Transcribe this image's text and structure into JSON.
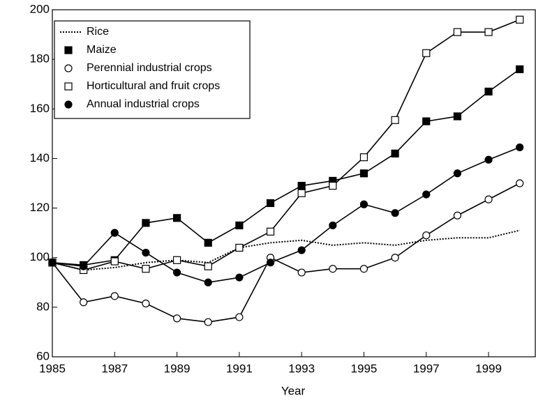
{
  "chart_data": {
    "type": "line",
    "x_label": "Year",
    "x": [
      1985,
      1986,
      1987,
      1988,
      1989,
      1990,
      1991,
      1992,
      1993,
      1994,
      1995,
      1996,
      1997,
      1998,
      1999,
      2000
    ],
    "xlim": [
      1985,
      2000.5
    ],
    "xticks": [
      1985,
      1987,
      1989,
      1991,
      1993,
      1995,
      1997,
      1999
    ],
    "ylim": [
      60,
      200
    ],
    "yticks": [
      60,
      80,
      100,
      120,
      140,
      160,
      180,
      200
    ],
    "legend": "upper left",
    "series": [
      {
        "name": "Rice",
        "color": "#000000",
        "marker": "none",
        "linestyle": "dotted",
        "values": [
          98,
          95,
          96,
          98,
          99,
          98,
          104,
          106,
          107,
          105,
          106,
          105,
          107,
          108,
          108,
          111
        ]
      },
      {
        "name": "Maize",
        "color": "#000000",
        "marker": "square-filled",
        "linestyle": "solid",
        "values": [
          98,
          97,
          99,
          114,
          116,
          106,
          113,
          122,
          129,
          131,
          134,
          142,
          155,
          157,
          167,
          176
        ]
      },
      {
        "name": "Perennial industrial crops",
        "color": "#000000",
        "marker": "circle-open",
        "linestyle": "solid",
        "values": [
          98,
          82,
          84.5,
          81.5,
          75.5,
          74,
          76,
          100,
          94,
          95.5,
          95.5,
          100,
          109,
          117,
          123.5,
          130
        ]
      },
      {
        "name": "Horticultural and fruit crops",
        "color": "#000000",
        "marker": "square-open",
        "linestyle": "solid",
        "values": [
          98,
          95,
          98.5,
          95.5,
          99,
          96.5,
          104,
          110.5,
          126,
          129,
          140.5,
          155.5,
          182.5,
          191,
          191,
          196
        ]
      },
      {
        "name": "Annual industrial crops",
        "color": "#000000",
        "marker": "circle-filled",
        "linestyle": "solid",
        "values": [
          98,
          96.5,
          110,
          102,
          94,
          90,
          92,
          98,
          103,
          113,
          121.5,
          118,
          125.5,
          134,
          139.5,
          144.5
        ]
      }
    ]
  }
}
